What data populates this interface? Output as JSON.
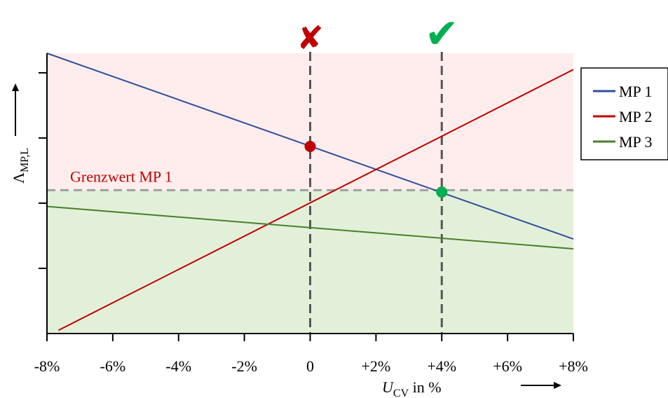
{
  "chart_data": {
    "type": "line",
    "xlabel_main": "U",
    "xlabel_sub": "CV",
    "xlabel_suffix": " in %",
    "ylabel_main": "Λ",
    "ylabel_sub": "MP,L",
    "xlim": [
      -8,
      8
    ],
    "ylim": [
      0,
      4.3
    ],
    "x_ticks": [
      -8,
      -6,
      -4,
      -2,
      0,
      2,
      4,
      6,
      8
    ],
    "x_tick_labels": [
      "-8%",
      "-6%",
      "-4%",
      "-2%",
      "0",
      "+2%",
      "+4%",
      "+6%",
      "+8%"
    ],
    "y_ticks": [
      1,
      2,
      3,
      4
    ],
    "threshold": {
      "value": 2.2,
      "label": "Grenzwert MP 1",
      "color": "#a0a0a0"
    },
    "regions": {
      "above_color": "#ffeded",
      "below_color": "#e2f0d9"
    },
    "series": [
      {
        "name": "MP 1",
        "color": "#2f4f9a",
        "x": [
          -8,
          8
        ],
        "y": [
          4.3,
          1.45
        ]
      },
      {
        "name": "MP 2",
        "color": "#c00000",
        "x": [
          -7.65,
          8
        ],
        "y": [
          0.05,
          4.05
        ]
      },
      {
        "name": "MP 3",
        "color": "#4a7f2a",
        "x": [
          -8,
          8
        ],
        "y": [
          1.95,
          1.3
        ]
      }
    ],
    "markers": [
      {
        "x": 0,
        "y": 2.87,
        "color": "#c00000"
      },
      {
        "x": 4,
        "y": 2.17,
        "color": "#00b050"
      }
    ],
    "vlines": [
      {
        "x": 0,
        "symbol": "✘",
        "symbol_color": "#c00000"
      },
      {
        "x": 4,
        "symbol": "✔",
        "symbol_color": "#00b050"
      }
    ],
    "legend_position": "right",
    "grid": false
  }
}
